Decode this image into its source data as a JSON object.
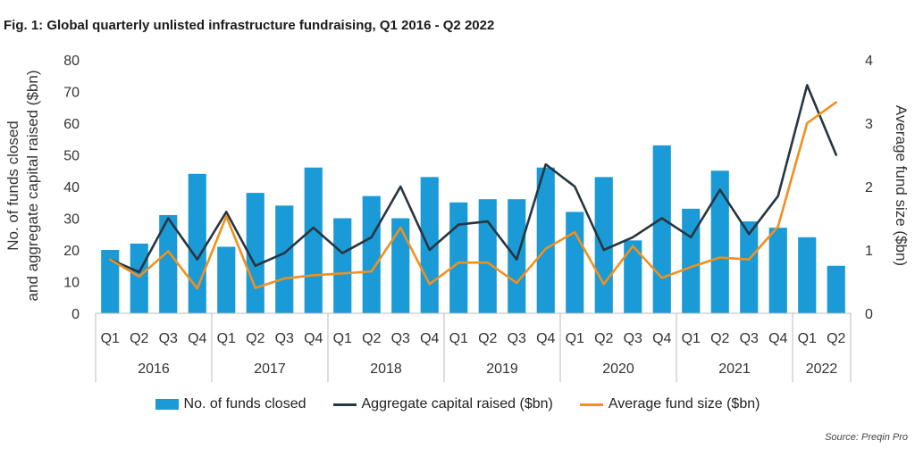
{
  "title": "Fig. 1: Global quarterly unlisted infrastructure fundraising, Q1 2016 - Q2 2022",
  "source": "Source: Preqin Pro",
  "colors": {
    "bar": "#1a9ad6",
    "aggregate": "#27363f",
    "average": "#f0901e",
    "axis": "#bbbbbb"
  },
  "chart_data": {
    "type": "bar+line",
    "categories": [
      "Q1",
      "Q2",
      "Q3",
      "Q4",
      "Q1",
      "Q2",
      "Q3",
      "Q4",
      "Q1",
      "Q2",
      "Q3",
      "Q4",
      "Q1",
      "Q2",
      "Q3",
      "Q4",
      "Q1",
      "Q2",
      "Q3",
      "Q4",
      "Q1",
      "Q2",
      "Q3",
      "Q4",
      "Q1",
      "Q2"
    ],
    "groups": [
      {
        "label": "2016",
        "count": 4
      },
      {
        "label": "2017",
        "count": 4
      },
      {
        "label": "2018",
        "count": 4
      },
      {
        "label": "2019",
        "count": 4
      },
      {
        "label": "2020",
        "count": 4
      },
      {
        "label": "2021",
        "count": 4
      },
      {
        "label": "2022",
        "count": 2
      }
    ],
    "series": [
      {
        "name": "No. of funds closed",
        "kind": "bar",
        "axis": "left",
        "values": [
          20,
          22,
          31,
          44,
          21,
          38,
          34,
          46,
          30,
          37,
          30,
          43,
          35,
          36,
          36,
          46,
          32,
          43,
          23,
          53,
          33,
          45,
          29,
          27,
          24,
          15
        ]
      },
      {
        "name": "Aggregate capital raised ($bn)",
        "kind": "line",
        "axis": "left",
        "values": [
          17,
          13,
          30,
          17,
          32,
          15,
          19,
          27,
          19,
          24,
          40,
          20,
          28,
          29,
          17,
          47,
          40,
          20,
          24,
          30,
          24,
          39,
          25,
          37,
          72,
          50
        ]
      },
      {
        "name": "Average fund size ($bn)",
        "kind": "line",
        "axis": "right",
        "values": [
          0.85,
          0.58,
          0.98,
          0.39,
          1.53,
          0.4,
          0.55,
          0.6,
          0.63,
          0.66,
          1.35,
          0.46,
          0.8,
          0.8,
          0.48,
          1.02,
          1.28,
          0.46,
          1.06,
          0.56,
          0.73,
          0.88,
          0.85,
          1.37,
          3.0,
          3.33
        ]
      }
    ],
    "ylabel": "No. of funds closed and aggregate capital raised ($bn)",
    "ylim": [
      0,
      80
    ],
    "yticks": [
      0,
      10,
      20,
      30,
      40,
      50,
      60,
      70,
      80
    ],
    "y2label": "Average fund size ($bn)",
    "y2lim": [
      0,
      4
    ],
    "y2ticks": [
      0,
      1,
      2,
      3,
      4
    ],
    "legend_position": "bottom"
  }
}
